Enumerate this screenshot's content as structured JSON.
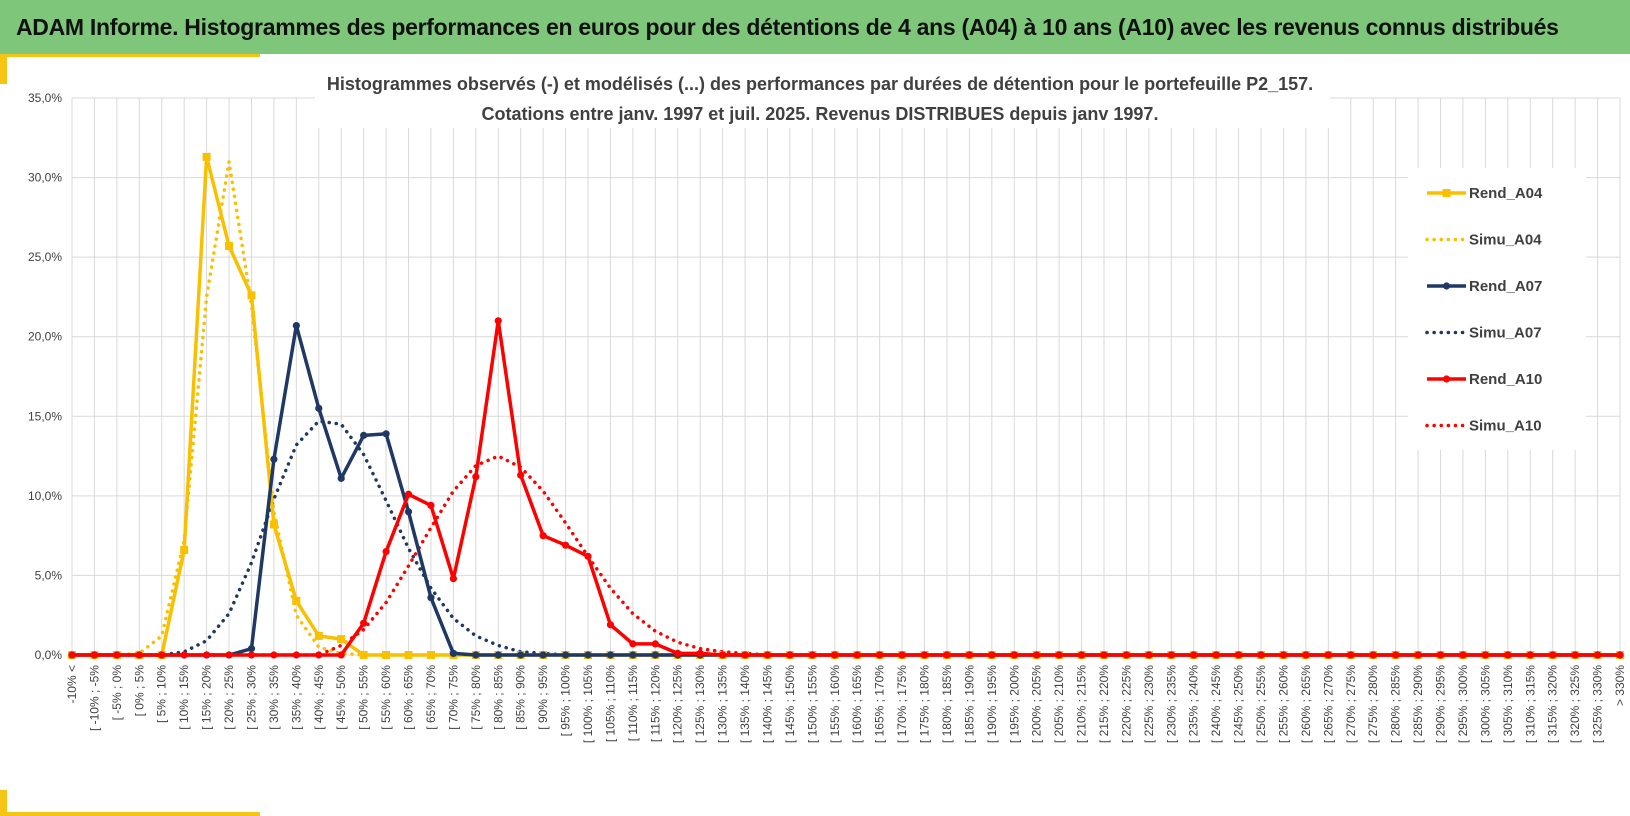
{
  "banner": {
    "title": "ADAM Informe. Histogrammes des performances en euros pour des détentions de 4 ans (A04) à 10 ans (A10) avec les revenus connus distribués"
  },
  "colors": {
    "banner_bg": "#7ec77a",
    "accent": "#f6c414",
    "a04": "#f9c000",
    "a07": "#1f3864",
    "a10": "#ff0000",
    "grid": "#d9d9d9",
    "text": "#404040"
  },
  "chart_data": {
    "type": "line",
    "title_lines": [
      "Histogrammes observés (-) et modélisés (...) des performances par durées de détention pour  le portefeuille P2_157.",
      "Cotations entre janv. 1997 et juil. 2025. Revenus DISTRIBUES depuis janv 1997."
    ],
    "ylim": [
      0,
      35
    ],
    "yticks": [
      0,
      5,
      10,
      15,
      20,
      25,
      30,
      35
    ],
    "ytick_labels": [
      "0,0%",
      "5,0%",
      "10,0%",
      "15,0%",
      "20,0%",
      "25,0%",
      "30,0%",
      "35,0%"
    ],
    "grid": true,
    "legend_position": "right",
    "categories": [
      "-10% <",
      "[ -10% ; -5%",
      "[ -5% ; 0%",
      "[ 0% ; 5%",
      "[ 5% ; 10%",
      "[ 10% ; 15%",
      "[ 15% ; 20%",
      "[ 20% ; 25%",
      "[ 25% ; 30%",
      "[ 30% ; 35%",
      "[ 35% ; 40%",
      "[ 40% ; 45%",
      "[ 45% ; 50%",
      "[ 50% ; 55%",
      "[ 55% ; 60%",
      "[ 60% ; 65%",
      "[ 65% ; 70%",
      "[ 70% ; 75%",
      "[ 75% ; 80%",
      "[ 80% ; 85%",
      "[ 85% ; 90%",
      "[ 90% ; 95%",
      "[ 95% ; 100%",
      "[ 100% ; 105%",
      "[ 105% ; 110%",
      "[ 110% ; 115%",
      "[ 115% ; 120%",
      "[ 120% ; 125%",
      "[ 125% ; 130%",
      "[ 130% ; 135%",
      "[ 135% ; 140%",
      "[ 140% ; 145%",
      "[ 145% ; 150%",
      "[ 150% ; 155%",
      "[ 155% ; 160%",
      "[ 160% ; 165%",
      "[ 165% ; 170%",
      "[ 170% ; 175%",
      "[ 175% ; 180%",
      "[ 180% ; 185%",
      "[ 185% ; 190%",
      "[ 190% ; 195%",
      "[ 195% ; 200%",
      "[ 200% ; 205%",
      "[ 205% ; 210%",
      "[ 210% ; 215%",
      "[ 215% ; 220%",
      "[ 220% ; 225%",
      "[ 225% ; 230%",
      "[ 230% ; 235%",
      "[ 235% ; 240%",
      "[ 240% ; 245%",
      "[ 245% ; 250%",
      "[ 250% ; 255%",
      "[ 255% ; 260%",
      "[ 260% ; 265%",
      "[ 265% ; 270%",
      "[ 270% ; 275%",
      "[ 275% ; 280%",
      "[ 280% ; 285%",
      "[ 285% ; 290%",
      "[ 290% ; 295%",
      "[ 295% ; 300%",
      "[ 300% ; 305%",
      "[ 305% ; 310%",
      "[ 310% ; 315%",
      "[ 315% ; 320%",
      "[ 320% ; 325%",
      "[ 325% ; 330%",
      "> 330%"
    ],
    "series": [
      {
        "name": "Rend_A04",
        "style": "solid",
        "marker": "square",
        "color": "#f9c000",
        "values": [
          0,
          0,
          0,
          0,
          0,
          6.6,
          31.3,
          25.7,
          22.6,
          8.2,
          3.4,
          1.2,
          1.0,
          0,
          0,
          0,
          0,
          0,
          0,
          0,
          0,
          0,
          0,
          0,
          0,
          0,
          0,
          0,
          0,
          0,
          0,
          0,
          0,
          0,
          0,
          0,
          0,
          0,
          0,
          0,
          0,
          0,
          0,
          0,
          0,
          0,
          0,
          0,
          0,
          0,
          0,
          0,
          0,
          0,
          0,
          0,
          0,
          0,
          0,
          0,
          0,
          0,
          0,
          0,
          0,
          0,
          0,
          0,
          0,
          0
        ]
      },
      {
        "name": "Simu_A04",
        "style": "dotted",
        "marker": "none",
        "color": "#f9c000",
        "values": [
          0,
          0,
          0,
          0.1,
          1.2,
          7.2,
          22.5,
          31.0,
          22.0,
          9.0,
          2.5,
          0.5,
          0.1,
          0,
          0,
          0,
          0,
          0,
          0,
          0,
          0,
          0,
          0,
          0,
          0,
          0,
          0,
          0,
          0,
          0,
          0,
          0,
          0,
          0,
          0,
          0,
          0,
          0,
          0,
          0,
          0,
          0,
          0,
          0,
          0,
          0,
          0,
          0,
          0,
          0,
          0,
          0,
          0,
          0,
          0,
          0,
          0,
          0,
          0,
          0,
          0,
          0,
          0,
          0,
          0,
          0,
          0,
          0,
          0,
          0
        ]
      },
      {
        "name": "Rend_A07",
        "style": "solid",
        "marker": "circle",
        "color": "#1f3864",
        "values": [
          0,
          0,
          0,
          0,
          0,
          0,
          0,
          0,
          0.4,
          12.3,
          20.7,
          15.5,
          11.1,
          13.8,
          13.9,
          9.0,
          3.6,
          0.1,
          0,
          0,
          0,
          0,
          0,
          0,
          0,
          0,
          0,
          0,
          0,
          0,
          0,
          0,
          0,
          0,
          0,
          0,
          0,
          0,
          0,
          0,
          0,
          0,
          0,
          0,
          0,
          0,
          0,
          0,
          0,
          0,
          0,
          0,
          0,
          0,
          0,
          0,
          0,
          0,
          0,
          0,
          0,
          0,
          0,
          0,
          0,
          0,
          0,
          0,
          0,
          0
        ]
      },
      {
        "name": "Simu_A07",
        "style": "dotted",
        "marker": "none",
        "color": "#1f3864",
        "values": [
          0,
          0,
          0,
          0,
          0,
          0.2,
          0.9,
          2.6,
          5.8,
          9.8,
          13.2,
          14.7,
          14.5,
          12.6,
          9.7,
          6.7,
          4.2,
          2.3,
          1.2,
          0.6,
          0.2,
          0.1,
          0,
          0,
          0,
          0,
          0,
          0,
          0,
          0,
          0,
          0,
          0,
          0,
          0,
          0,
          0,
          0,
          0,
          0,
          0,
          0,
          0,
          0,
          0,
          0,
          0,
          0,
          0,
          0,
          0,
          0,
          0,
          0,
          0,
          0,
          0,
          0,
          0,
          0,
          0,
          0,
          0,
          0,
          0,
          0,
          0,
          0,
          0,
          0
        ]
      },
      {
        "name": "Rend_A10",
        "style": "solid",
        "marker": "circle",
        "color": "#ff0000",
        "values": [
          0,
          0,
          0,
          0,
          0,
          0,
          0,
          0,
          0,
          0,
          0,
          0,
          0,
          2.0,
          6.5,
          10.1,
          9.4,
          4.8,
          11.2,
          21.0,
          11.3,
          7.5,
          6.9,
          6.2,
          1.9,
          0.7,
          0.7,
          0.1,
          0.1,
          0,
          0,
          0,
          0,
          0,
          0,
          0,
          0,
          0,
          0,
          0,
          0,
          0,
          0,
          0,
          0,
          0,
          0,
          0,
          0,
          0,
          0,
          0,
          0,
          0,
          0,
          0,
          0,
          0,
          0,
          0,
          0,
          0,
          0,
          0,
          0,
          0,
          0,
          0,
          0,
          0
        ]
      },
      {
        "name": "Simu_A10",
        "style": "dotted",
        "marker": "none",
        "color": "#ff0000",
        "values": [
          0,
          0,
          0,
          0,
          0,
          0,
          0,
          0,
          0,
          0,
          0,
          0,
          0.6,
          1.6,
          3.3,
          5.6,
          8.0,
          10.3,
          11.9,
          12.5,
          11.8,
          10.3,
          8.3,
          6.2,
          4.2,
          2.6,
          1.5,
          0.8,
          0.4,
          0.2,
          0.1,
          0,
          0,
          0,
          0,
          0,
          0,
          0,
          0,
          0,
          0,
          0,
          0,
          0,
          0,
          0,
          0,
          0,
          0,
          0,
          0,
          0,
          0,
          0,
          0,
          0,
          0,
          0,
          0,
          0,
          0,
          0,
          0,
          0,
          0,
          0,
          0,
          0,
          0,
          0
        ]
      }
    ]
  }
}
